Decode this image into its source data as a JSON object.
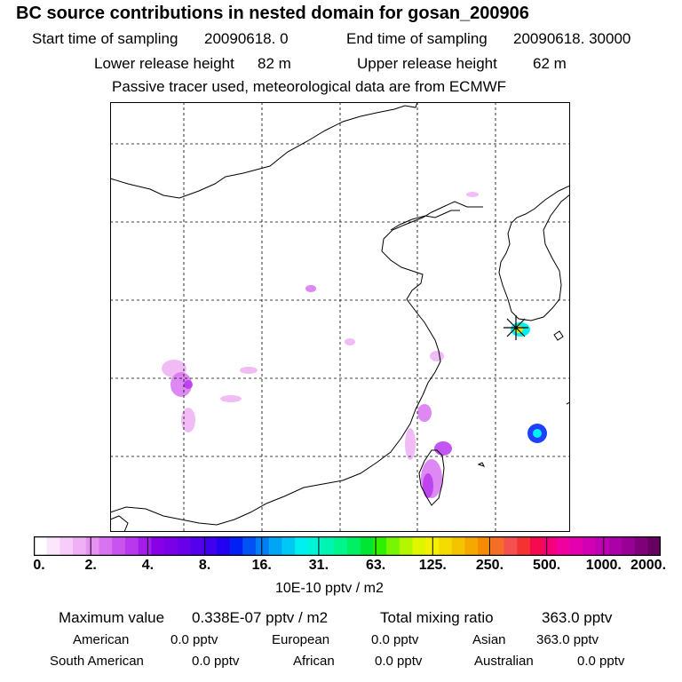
{
  "header": {
    "title": "BC  source contributions in nested domain for gosan_200906",
    "start_label": "Start time of sampling",
    "start_value": "20090618.     0",
    "end_label": "End time of sampling",
    "end_value": "20090618. 30000",
    "lower_label": "Lower release height",
    "lower_value": "82 m",
    "upper_label": "Upper release height",
    "upper_value": "62 m",
    "note": "Passive tracer used, meteorological data are from ECMWF"
  },
  "colorbar": {
    "ticks": [
      "0.",
      "2.",
      "4.",
      "8.",
      "16.",
      "31.",
      "63.",
      "125.",
      "250.",
      "500.",
      "1000.",
      "2000."
    ],
    "colors": [
      "#ffffff",
      "#fbe6fb",
      "#f6ccf8",
      "#efb0f5",
      "#e793f3",
      "#d873f1",
      "#c853ef",
      "#b838ee",
      "#a21de9",
      "#8800e6",
      "#7a00e8",
      "#6a00ea",
      "#5500ed",
      "#3f00f0",
      "#2400f2",
      "#0020f5",
      "#0052f5",
      "#007ef5",
      "#00a6f5",
      "#00c8f5",
      "#00f0f0",
      "#00f5d6",
      "#00f5b0",
      "#00f58a",
      "#00f064",
      "#00e632",
      "#30f000",
      "#78f500",
      "#b4f500",
      "#e0f500",
      "#f5f000",
      "#f5dc00",
      "#f5c400",
      "#f5a800",
      "#f58c00",
      "#f56e28",
      "#f55050",
      "#f53232",
      "#f50a50",
      "#f5007a",
      "#f0009c",
      "#e400ac",
      "#d200b4",
      "#c000b4",
      "#ac00a8",
      "#980096",
      "#80007c",
      "#680064"
    ],
    "unit_label": "10E-10 pptv / m2"
  },
  "summary": {
    "max_label": "Maximum value",
    "max_value": "0.338E-07 pptv / m2",
    "total_label": "Total mixing ratio",
    "total_value": "363.0 pptv",
    "american_label": "American",
    "american_value": "0.0 pptv",
    "european_label": "European",
    "european_value": "0.0 pptv",
    "asian_label": "Asian",
    "asian_value": "363.0 pptv",
    "south_american_label": "South American",
    "south_american_value": "0.0 pptv",
    "african_label": "African",
    "african_value": "0.0 pptv",
    "australian_label": "Australian",
    "australian_value": "0.0 pptv"
  },
  "map": {
    "receptor_marker": "asterisk-icon",
    "plume_colors": {
      "light": "#efb0f5",
      "mid": "#d873f1",
      "strong": "#b838ee",
      "peak_cyan": "#00f0f0",
      "peak_blue": "#2040ff",
      "peak_yellow": "#f5dc00"
    }
  }
}
